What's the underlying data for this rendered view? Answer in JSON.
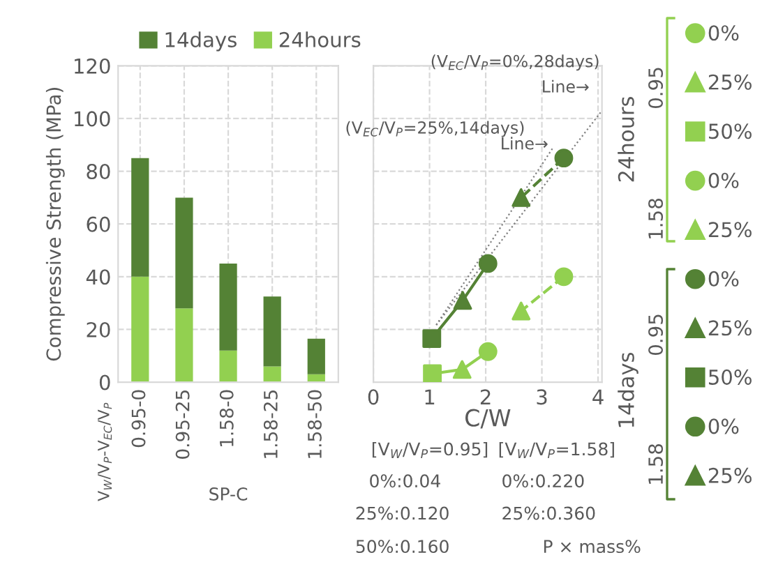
{
  "chart_data": [
    {
      "type": "bar",
      "stacked": true,
      "categories": [
        "0.95-0",
        "0.95-25",
        "1.58-0",
        "1.58-25",
        "1.58-50"
      ],
      "series": [
        {
          "name": "24hours",
          "color": "#92d050",
          "values": [
            40,
            28,
            12,
            6,
            3
          ]
        },
        {
          "name": "14days",
          "color": "#548235",
          "values": [
            45,
            42,
            33,
            26.5,
            13.5
          ]
        }
      ],
      "ylabel": "Compressive Strength (MPa)",
      "xlabel": "SP-C",
      "annotations": [
        "V$_{W}$/V$_{P}$-V$_{EC}$/V$_{P}$"
      ],
      "ylim": [
        0,
        120
      ],
      "yticks": [
        0,
        20,
        40,
        60,
        80,
        100,
        120
      ],
      "grid": true,
      "legend": "top"
    },
    {
      "type": "scatter",
      "xlabel": "C/W",
      "xlim": [
        0,
        4.07
      ],
      "xticks": [
        0,
        1,
        2,
        3,
        4
      ],
      "ylim": [
        0,
        120
      ],
      "yticks": [
        0,
        20,
        40,
        60,
        80,
        100,
        120
      ],
      "tick_labels": "x",
      "grid": true,
      "legend": "right",
      "series": [
        {
          "name": "0%",
          "color": "#92d050",
          "marker": "circle",
          "x": [
            2.04
          ],
          "values": [
            11.6
          ]
        },
        {
          "name": "25%",
          "color": "#92d050",
          "marker": "triangle",
          "x": [
            1.58
          ],
          "values": [
            4.8
          ]
        },
        {
          "name": "50%",
          "color": "#92d050",
          "marker": "square",
          "x": [
            1.05
          ],
          "values": [
            3.2
          ]
        },
        {
          "name": "0%",
          "color": "#92d050",
          "marker": "circle",
          "x": [
            3.39
          ],
          "values": [
            40
          ]
        },
        {
          "name": "25%",
          "color": "#92d050",
          "marker": "triangle",
          "x": [
            2.63
          ],
          "values": [
            27
          ]
        },
        {
          "name": "0%",
          "color": "#548235",
          "marker": "circle",
          "x": [
            2.04
          ],
          "values": [
            45
          ]
        },
        {
          "name": "25%",
          "color": "#548235",
          "marker": "triangle",
          "x": [
            1.59
          ],
          "values": [
            31
          ]
        },
        {
          "name": "50%",
          "color": "#548235",
          "marker": "square",
          "x": [
            1.04
          ],
          "values": [
            16.5
          ]
        },
        {
          "name": "0%",
          "color": "#548235",
          "marker": "circle",
          "x": [
            3.39
          ],
          "values": [
            85
          ]
        },
        {
          "name": "25%",
          "color": "#548235",
          "marker": "triangle",
          "x": [
            2.63
          ],
          "values": [
            70
          ]
        },
        {
          "type": "line",
          "color": "#92d050",
          "line_style": "solid",
          "marker": "none",
          "x": [
            2.04,
            1.58,
            1.05
          ],
          "values": [
            11.6,
            4.8,
            3.2
          ]
        },
        {
          "type": "line",
          "color": "#92d050",
          "line_style": "dashed",
          "marker": "none",
          "x": [
            3.39,
            2.63
          ],
          "values": [
            40,
            27
          ]
        },
        {
          "type": "line",
          "color": "#548235",
          "line_style": "solid",
          "marker": "none",
          "x": [
            2.04,
            1.59,
            1.04
          ],
          "values": [
            45,
            31,
            16.5
          ]
        },
        {
          "type": "line",
          "color": "#548235",
          "line_style": "dashed",
          "marker": "none",
          "x": [
            3.39,
            2.63
          ],
          "values": [
            85,
            70
          ]
        },
        {
          "type": "line",
          "color": "#808080",
          "line_style": "dotted",
          "marker": "none",
          "x": [
            1.12,
            4.07
          ],
          "values": [
            21.7,
            103
          ]
        },
        {
          "type": "line",
          "color": "#808080",
          "line_style": "dotted",
          "marker": "none",
          "x": [
            1.12,
            3.2
          ],
          "values": [
            21.7,
            89
          ]
        }
      ],
      "annotations": [
        "(V$_{EC}$/V$_{P}$=0%,28days)",
        "Line→",
        "(V$_{EC}$/V$_{P}$=25%,14days)",
        "Line→",
        "[V$_{W}$/V$_{P}$=0.95]",
        "0%:0.04",
        "25%:0.120",
        "50%:0.160",
        "[V$_{W}$/V$_{P}$=1.58]",
        "0%:0.220",
        "25%:0.360",
        "P × mass%",
        "24hours",
        "0.95",
        "1.58",
        "14days",
        "0.95",
        "1.58"
      ]
    }
  ]
}
